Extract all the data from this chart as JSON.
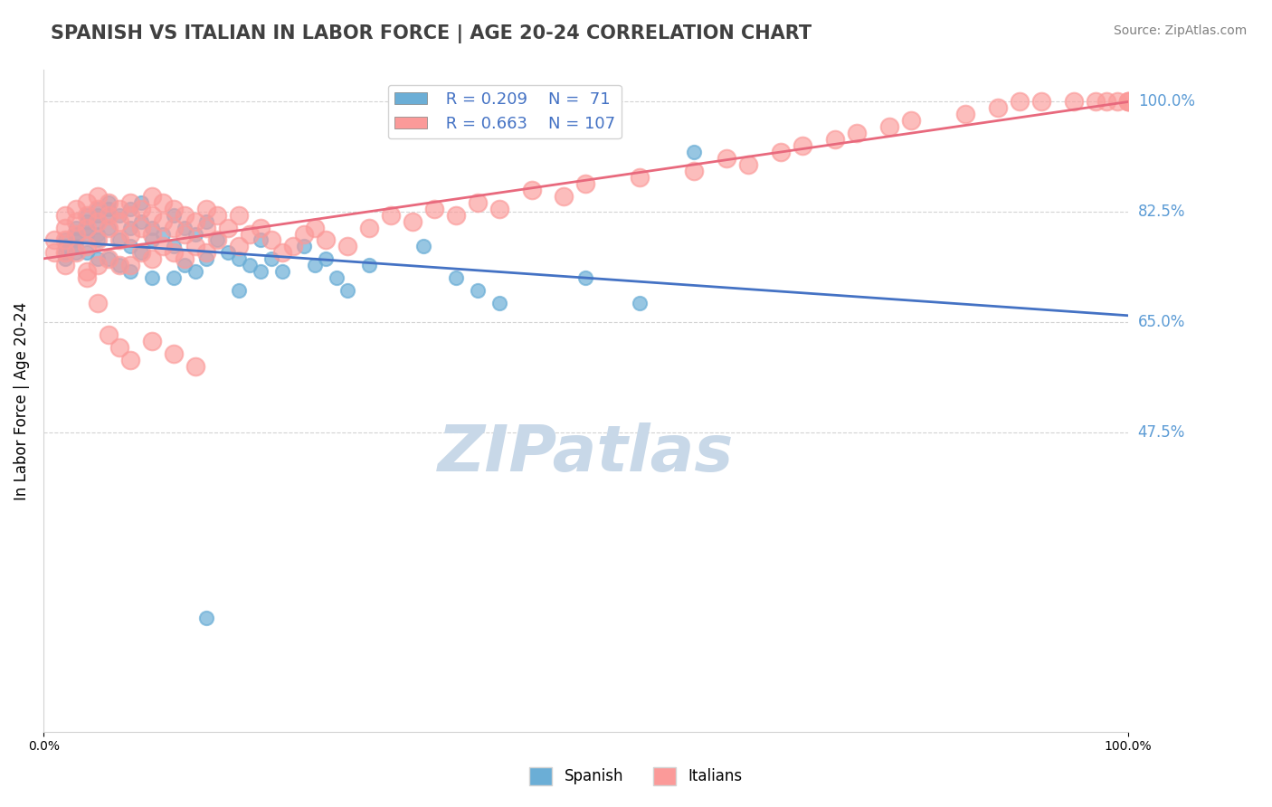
{
  "title": "SPANISH VS ITALIAN IN LABOR FORCE | AGE 20-24 CORRELATION CHART",
  "source_text": "Source: ZipAtlas.com",
  "xlabel": "",
  "ylabel": "In Labor Force | Age 20-24",
  "xlim": [
    0.0,
    1.0
  ],
  "ylim": [
    0.0,
    1.0
  ],
  "xtick_labels": [
    "0.0%",
    "100.0%"
  ],
  "ytick_labels": [
    "100.0%",
    "82.5%",
    "65.0%",
    "47.5%"
  ],
  "ytick_positions": [
    1.0,
    0.825,
    0.65,
    0.475
  ],
  "right_ytick_color": "#5b9bd5",
  "legend_r1": "R = 0.209",
  "legend_n1": "N =  71",
  "legend_r2": "R = 0.663",
  "legend_n2": "N = 107",
  "blue_color": "#6baed6",
  "pink_color": "#fb9a99",
  "blue_line_color": "#4472c4",
  "pink_line_color": "#e8697d",
  "watermark_color": "#c8d8e8",
  "title_fontsize": 15,
  "spanish_x": [
    0.02,
    0.02,
    0.02,
    0.02,
    0.03,
    0.03,
    0.03,
    0.03,
    0.03,
    0.04,
    0.04,
    0.04,
    0.04,
    0.04,
    0.05,
    0.05,
    0.05,
    0.05,
    0.05,
    0.05,
    0.06,
    0.06,
    0.06,
    0.06,
    0.06,
    0.07,
    0.07,
    0.07,
    0.08,
    0.08,
    0.08,
    0.08,
    0.09,
    0.09,
    0.09,
    0.1,
    0.1,
    0.1,
    0.11,
    0.12,
    0.12,
    0.12,
    0.13,
    0.13,
    0.14,
    0.14,
    0.15,
    0.15,
    0.16,
    0.17,
    0.18,
    0.18,
    0.19,
    0.2,
    0.2,
    0.21,
    0.22,
    0.24,
    0.25,
    0.26,
    0.27,
    0.28,
    0.3,
    0.35,
    0.38,
    0.4,
    0.42,
    0.5,
    0.55,
    0.6,
    0.15
  ],
  "spanish_y": [
    0.78,
    0.77,
    0.76,
    0.75,
    0.8,
    0.79,
    0.78,
    0.77,
    0.76,
    0.82,
    0.81,
    0.8,
    0.79,
    0.76,
    0.83,
    0.82,
    0.81,
    0.79,
    0.78,
    0.75,
    0.84,
    0.83,
    0.82,
    0.8,
    0.75,
    0.82,
    0.78,
    0.74,
    0.83,
    0.8,
    0.77,
    0.73,
    0.84,
    0.81,
    0.76,
    0.8,
    0.78,
    0.72,
    0.79,
    0.82,
    0.77,
    0.72,
    0.8,
    0.74,
    0.79,
    0.73,
    0.81,
    0.75,
    0.78,
    0.76,
    0.75,
    0.7,
    0.74,
    0.78,
    0.73,
    0.75,
    0.73,
    0.77,
    0.74,
    0.75,
    0.72,
    0.7,
    0.74,
    0.77,
    0.72,
    0.7,
    0.68,
    0.72,
    0.68,
    0.92,
    0.18
  ],
  "italian_x": [
    0.01,
    0.01,
    0.02,
    0.02,
    0.02,
    0.02,
    0.02,
    0.03,
    0.03,
    0.03,
    0.03,
    0.04,
    0.04,
    0.04,
    0.04,
    0.04,
    0.05,
    0.05,
    0.05,
    0.05,
    0.05,
    0.06,
    0.06,
    0.06,
    0.06,
    0.07,
    0.07,
    0.07,
    0.07,
    0.08,
    0.08,
    0.08,
    0.08,
    0.09,
    0.09,
    0.09,
    0.1,
    0.1,
    0.1,
    0.1,
    0.11,
    0.11,
    0.11,
    0.12,
    0.12,
    0.12,
    0.13,
    0.13,
    0.13,
    0.14,
    0.14,
    0.15,
    0.15,
    0.15,
    0.16,
    0.16,
    0.17,
    0.18,
    0.18,
    0.19,
    0.2,
    0.21,
    0.22,
    0.23,
    0.24,
    0.25,
    0.26,
    0.28,
    0.3,
    0.32,
    0.34,
    0.36,
    0.38,
    0.4,
    0.42,
    0.45,
    0.48,
    0.5,
    0.55,
    0.6,
    0.63,
    0.65,
    0.68,
    0.7,
    0.73,
    0.75,
    0.78,
    0.8,
    0.85,
    0.88,
    0.9,
    0.92,
    0.95,
    0.97,
    0.98,
    0.99,
    1.0,
    1.0,
    1.0,
    0.04,
    0.05,
    0.06,
    0.07,
    0.08,
    0.1,
    0.12,
    0.14
  ],
  "italian_y": [
    0.78,
    0.76,
    0.82,
    0.8,
    0.78,
    0.76,
    0.74,
    0.83,
    0.81,
    0.79,
    0.76,
    0.84,
    0.82,
    0.8,
    0.77,
    0.73,
    0.85,
    0.83,
    0.81,
    0.78,
    0.74,
    0.84,
    0.82,
    0.8,
    0.75,
    0.83,
    0.81,
    0.78,
    0.74,
    0.84,
    0.82,
    0.79,
    0.74,
    0.83,
    0.8,
    0.76,
    0.85,
    0.82,
    0.79,
    0.75,
    0.84,
    0.81,
    0.77,
    0.83,
    0.8,
    0.76,
    0.82,
    0.79,
    0.75,
    0.81,
    0.77,
    0.83,
    0.8,
    0.76,
    0.82,
    0.78,
    0.8,
    0.82,
    0.77,
    0.79,
    0.8,
    0.78,
    0.76,
    0.77,
    0.79,
    0.8,
    0.78,
    0.77,
    0.8,
    0.82,
    0.81,
    0.83,
    0.82,
    0.84,
    0.83,
    0.86,
    0.85,
    0.87,
    0.88,
    0.89,
    0.91,
    0.9,
    0.92,
    0.93,
    0.94,
    0.95,
    0.96,
    0.97,
    0.98,
    0.99,
    1.0,
    1.0,
    1.0,
    1.0,
    1.0,
    1.0,
    1.0,
    1.0,
    1.0,
    0.72,
    0.68,
    0.63,
    0.61,
    0.59,
    0.62,
    0.6,
    0.58
  ]
}
